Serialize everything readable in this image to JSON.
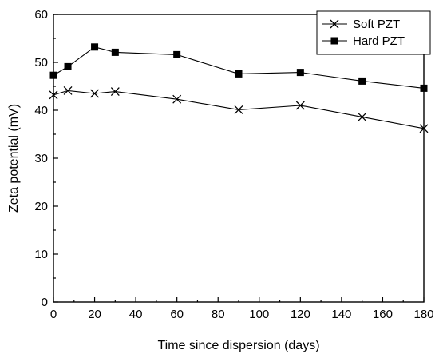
{
  "chart_data": {
    "type": "line",
    "title": "",
    "xlabel": "Time since dispersion (days)",
    "ylabel": "Zeta potential (mV)",
    "xlim": [
      0,
      180
    ],
    "ylim": [
      0,
      60
    ],
    "xticks": [
      0,
      20,
      40,
      60,
      80,
      100,
      120,
      140,
      160,
      180
    ],
    "yticks": [
      0,
      10,
      20,
      30,
      40,
      50,
      60
    ],
    "grid": false,
    "legend_position": "top-right",
    "series": [
      {
        "name": "Soft PZT",
        "marker": "x",
        "x": [
          0,
          7,
          20,
          30,
          60,
          90,
          120,
          150,
          180
        ],
        "y": [
          43.2,
          44.1,
          43.5,
          43.9,
          42.3,
          40.1,
          41.0,
          38.6,
          36.2
        ]
      },
      {
        "name": "Hard PZT",
        "marker": "filled-square",
        "x": [
          0,
          7,
          20,
          30,
          60,
          90,
          120,
          150,
          180
        ],
        "y": [
          47.3,
          49.1,
          53.2,
          52.1,
          51.6,
          47.6,
          47.9,
          46.1,
          44.6
        ]
      }
    ]
  }
}
